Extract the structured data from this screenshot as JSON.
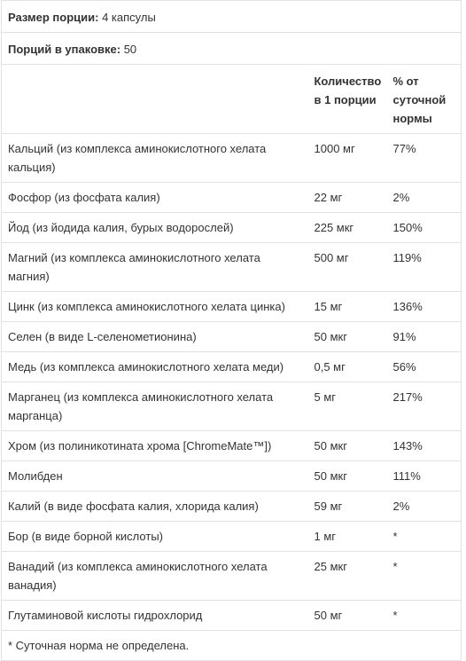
{
  "serving": {
    "label": "Размер порции:",
    "value": "4 капсулы"
  },
  "servings_per_container": {
    "label": "Порций в упаковке:",
    "value": "50"
  },
  "table": {
    "columns": [
      "",
      "Количество в 1 порции",
      "% от суточной нормы"
    ],
    "rows": [
      [
        "Кальций (из комплекса аминокислотного хелата кальция)",
        "1000 мг",
        "77%"
      ],
      [
        "Фосфор (из фосфата калия)",
        "22 мг",
        "2%"
      ],
      [
        "Йод (из йодида калия, бурых водорослей)",
        "225 мкг",
        "150%"
      ],
      [
        "Магний (из комплекса аминокислотного хелата магния)",
        "500 мг",
        "119%"
      ],
      [
        "Цинк (из комплекса аминокислотного хелата цинка)",
        "15 мг",
        "136%"
      ],
      [
        "Селен (в виде L-селенометионина)",
        "50 мкг",
        "91%"
      ],
      [
        "Медь (из комплекса аминокислотного хелата меди)",
        "0,5 мг",
        "56%"
      ],
      [
        "Марганец (из комплекса аминокислотного хелата марганца)",
        "5 мг",
        "217%"
      ],
      [
        "Хром (из полиникотината хрома [ChromeMate™])",
        "50 мкг",
        "143%"
      ],
      [
        "Молибден",
        "50 мкг",
        "111%"
      ],
      [
        "Калий (в виде фосфата калия, хлорида калия)",
        "59 мг",
        "2%"
      ],
      [
        "Бор (в виде борной кислоты)",
        "1 мг",
        "*"
      ],
      [
        "Ванадий (из комплекса аминокислотного хелата ванадия)",
        "25 мкг",
        "*"
      ],
      [
        "Глутаминовой кислоты гидрохлорид",
        "50 мг",
        "*"
      ]
    ],
    "footnote": "* Суточная норма не определена."
  }
}
